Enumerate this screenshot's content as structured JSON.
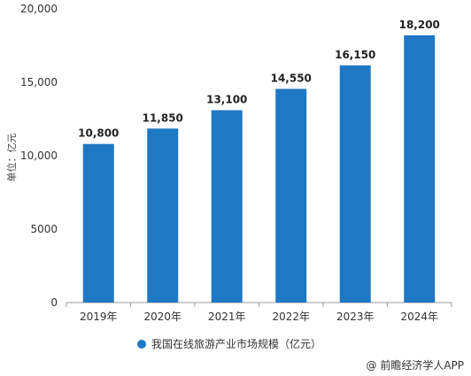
{
  "colors": {
    "bar": "#1f78c4",
    "axis": "#999999",
    "grid": "#cccccc",
    "text": "#333333"
  },
  "chart_data": {
    "type": "bar",
    "categories": [
      "2019年",
      "2020年",
      "2021年",
      "2022年",
      "2023年",
      "2024年"
    ],
    "values": [
      10800,
      11850,
      13100,
      14550,
      16150,
      18200
    ],
    "data_labels": [
      "10,800",
      "11,850",
      "13,100",
      "14,550",
      "16,150",
      "18,200"
    ],
    "ylabel": "单位：亿元",
    "ylim": [
      0,
      20000
    ],
    "yticks": [
      0,
      5000,
      10000,
      15000,
      20000
    ],
    "ytick_labels": [
      "0",
      "5000",
      "10,000",
      "15,000",
      "20,000"
    ],
    "grid": false,
    "legend_position": "bottom-center"
  },
  "legend": {
    "label": "我国在线旅游产业市场规模（亿元）"
  },
  "footer": {
    "credit_icon": "at-icon",
    "credit": "@ 前瞻经济学人APP"
  }
}
